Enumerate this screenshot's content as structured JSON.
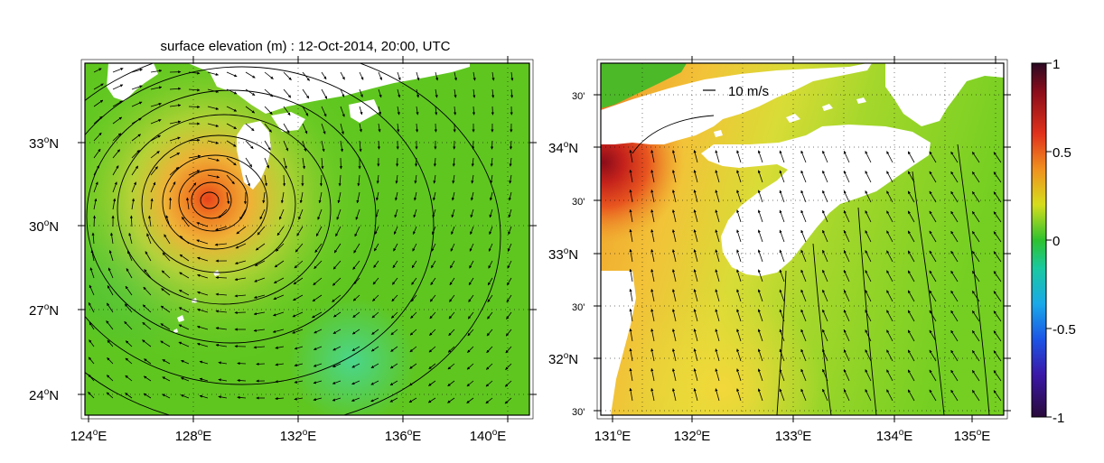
{
  "title": "surface elevation (m)  : 12-Oct-2014, 20:00, UTC",
  "left_map": {
    "lat_labels": [
      "33",
      "30",
      "27",
      "24"
    ],
    "lon_labels": [
      "124",
      "128",
      "132",
      "136",
      "140"
    ]
  },
  "right_map": {
    "lat_labels": [
      "30'",
      "34",
      "30'",
      "33",
      "30'",
      "32",
      "30'"
    ],
    "lat_hemi": [
      "",
      "N",
      "",
      "N",
      "",
      "N",
      ""
    ],
    "lon_labels": [
      "131",
      "132",
      "133",
      "134",
      "135"
    ],
    "vector_scale_label": "10 m/s"
  },
  "colorbar": {
    "tick_labels": [
      "1",
      "0.5",
      "0",
      "-0.5",
      "-1"
    ],
    "colormap": "jet-like diverging (dark purple → blue → cyan → green → yellow → orange → red → dark red)"
  },
  "colors": {
    "ocean_mid": "#5fcb1f",
    "ocean_warm": "#f2b233",
    "land": "#ffffff",
    "high_surge": "#8a0d1a"
  }
}
